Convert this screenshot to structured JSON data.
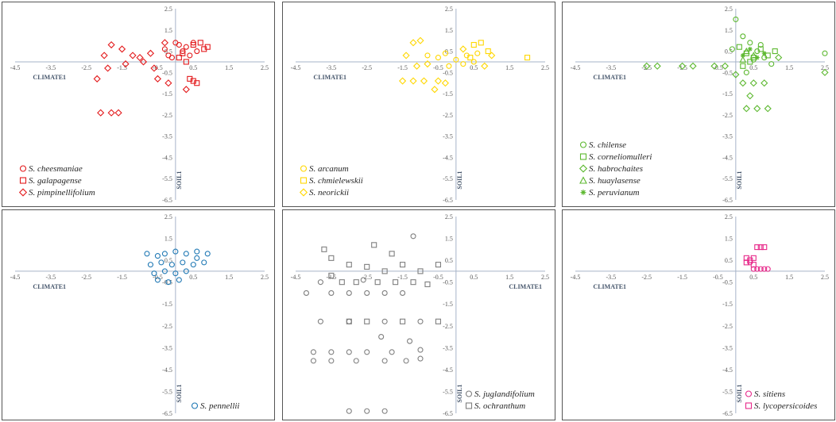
{
  "chart_data": [
    {
      "id": "p1",
      "type": "scatter",
      "xlabel": "CLIMATE1",
      "ylabel": "SOIL1",
      "xlim": [
        -4.5,
        2.5
      ],
      "ylim": [
        -6.5,
        2.5
      ],
      "xticks": [
        -4.5,
        -3.5,
        -2.5,
        -1.5,
        -0.5,
        0.5,
        1.5,
        2.5
      ],
      "yticks": [
        2.5,
        1.5,
        0.5,
        -0.5,
        -1.5,
        -2.5,
        -3.5,
        -4.5,
        -5.5,
        -6.5
      ],
      "xlabel_pos": "left",
      "legend_position": "bottom-left",
      "series": [
        {
          "name": "S. cheesmaniae",
          "marker": "circle",
          "color": "#e31a1c",
          "points": [
            [
              0.1,
              0.8
            ],
            [
              0.3,
              0.7
            ],
            [
              0.5,
              0.9
            ],
            [
              0.2,
              0.5
            ],
            [
              -0.3,
              0.6
            ],
            [
              0.4,
              0.3
            ],
            [
              -0.1,
              0.2
            ],
            [
              0.6,
              0.5
            ],
            [
              0.0,
              0.9
            ],
            [
              -0.2,
              0.3
            ]
          ]
        },
        {
          "name": "S. galapagense",
          "marker": "square",
          "color": "#e31a1c",
          "points": [
            [
              0.2,
              0.4
            ],
            [
              0.5,
              0.8
            ],
            [
              0.7,
              0.9
            ],
            [
              0.3,
              0.0
            ],
            [
              0.4,
              -0.8
            ],
            [
              0.6,
              -1.0
            ],
            [
              0.8,
              0.6
            ],
            [
              0.1,
              0.2
            ],
            [
              0.9,
              0.7
            ],
            [
              0.5,
              -0.9
            ]
          ]
        },
        {
          "name": "S. pimpinellifolium",
          "marker": "diamond",
          "color": "#e31a1c",
          "points": [
            [
              -1.8,
              0.8
            ],
            [
              -2.0,
              0.3
            ],
            [
              -2.2,
              -0.8
            ],
            [
              -1.5,
              0.6
            ],
            [
              -1.2,
              0.3
            ],
            [
              -0.9,
              0.0
            ],
            [
              -0.6,
              -0.3
            ],
            [
              -0.5,
              -0.8
            ],
            [
              -1.0,
              0.2
            ],
            [
              -1.4,
              -0.1
            ],
            [
              -2.1,
              -2.4
            ],
            [
              -1.8,
              -2.4
            ],
            [
              -1.6,
              -2.4
            ],
            [
              -0.2,
              -1.0
            ],
            [
              0.3,
              -1.3
            ],
            [
              -0.3,
              0.9
            ],
            [
              -0.7,
              0.4
            ],
            [
              -1.9,
              -0.3
            ]
          ]
        }
      ]
    },
    {
      "id": "p2",
      "type": "scatter",
      "xlabel": "CLIMATE1",
      "ylabel": "SOIL1",
      "xlim": [
        -4.5,
        2.5
      ],
      "ylim": [
        -6.5,
        2.5
      ],
      "xticks": [
        -4.5,
        -3.5,
        -2.5,
        -1.5,
        -0.5,
        0.5,
        1.5,
        2.5
      ],
      "yticks": [
        2.5,
        1.5,
        0.5,
        -0.5,
        -1.5,
        -2.5,
        -3.5,
        -4.5,
        -5.5,
        -6.5
      ],
      "xlabel_pos": "left",
      "legend_position": "bottom-left",
      "series": [
        {
          "name": "S. arcanum",
          "marker": "circle",
          "color": "#ffd700",
          "points": [
            [
              -0.5,
              0.2
            ],
            [
              -0.3,
              0.4
            ],
            [
              0.0,
              0.1
            ],
            [
              0.3,
              0.3
            ],
            [
              0.5,
              0.0
            ],
            [
              -0.8,
              0.3
            ],
            [
              0.2,
              -0.1
            ],
            [
              0.6,
              0.4
            ],
            [
              -0.2,
              -0.2
            ]
          ]
        },
        {
          "name": "S. chmielewskii",
          "marker": "square",
          "color": "#ffd700",
          "points": [
            [
              2.0,
              0.2
            ],
            [
              0.5,
              0.8
            ],
            [
              0.7,
              0.9
            ],
            [
              0.9,
              0.5
            ],
            [
              0.4,
              0.2
            ]
          ]
        },
        {
          "name": "S. neorickii",
          "marker": "diamond",
          "color": "#ffd700",
          "points": [
            [
              -1.2,
              0.9
            ],
            [
              -1.0,
              1.0
            ],
            [
              -1.4,
              0.3
            ],
            [
              -1.5,
              -0.9
            ],
            [
              -1.2,
              -0.9
            ],
            [
              -0.9,
              -0.9
            ],
            [
              -0.5,
              -0.9
            ],
            [
              -0.6,
              -1.3
            ],
            [
              -0.3,
              -1.0
            ],
            [
              -0.8,
              -0.1
            ],
            [
              -1.1,
              -0.2
            ],
            [
              0.2,
              0.6
            ],
            [
              1.0,
              0.3
            ],
            [
              0.8,
              -0.2
            ]
          ]
        }
      ]
    },
    {
      "id": "p3",
      "type": "scatter",
      "xlabel": "CLIMATE1",
      "ylabel": "SOIL1",
      "xlim": [
        -4.5,
        2.5
      ],
      "ylim": [
        -6.5,
        2.5
      ],
      "xticks": [
        -4.5,
        -3.5,
        -2.5,
        -1.5,
        -0.5,
        0.5,
        1.5,
        2.5
      ],
      "yticks": [
        2.5,
        1.5,
        0.5,
        -0.5,
        -1.5,
        -2.5,
        -3.5,
        -4.5,
        -5.5,
        -6.5
      ],
      "xlabel_pos": "left",
      "legend_position": "bottom-left",
      "series": [
        {
          "name": "S. chilense",
          "marker": "circle",
          "color": "#5cb82f",
          "points": [
            [
              0.0,
              2.0
            ],
            [
              0.2,
              1.2
            ],
            [
              0.4,
              0.9
            ],
            [
              0.6,
              0.5
            ],
            [
              0.8,
              0.2
            ],
            [
              1.0,
              -0.1
            ],
            [
              0.3,
              -0.5
            ],
            [
              0.5,
              0.1
            ],
            [
              2.5,
              0.4
            ],
            [
              0.7,
              0.8
            ],
            [
              -0.1,
              0.6
            ]
          ]
        },
        {
          "name": "S. corneliomulleri",
          "marker": "square",
          "color": "#5cb82f",
          "points": [
            [
              0.1,
              0.7
            ],
            [
              0.3,
              0.4
            ],
            [
              0.5,
              0.2
            ],
            [
              0.7,
              0.6
            ],
            [
              0.9,
              0.3
            ],
            [
              0.2,
              -0.2
            ],
            [
              0.4,
              0.0
            ],
            [
              1.1,
              0.5
            ]
          ]
        },
        {
          "name": "S. habrochaites",
          "marker": "diamond",
          "color": "#5cb82f",
          "points": [
            [
              -2.5,
              -0.2
            ],
            [
              -2.2,
              -0.2
            ],
            [
              -1.5,
              -0.2
            ],
            [
              -1.2,
              -0.2
            ],
            [
              -0.6,
              -0.2
            ],
            [
              -0.3,
              -0.2
            ],
            [
              0.2,
              -1.0
            ],
            [
              0.5,
              -1.0
            ],
            [
              0.8,
              -1.0
            ],
            [
              0.3,
              -2.2
            ],
            [
              0.6,
              -2.2
            ],
            [
              0.9,
              -2.2
            ],
            [
              1.2,
              0.2
            ],
            [
              2.5,
              -0.5
            ],
            [
              0.0,
              -0.6
            ],
            [
              0.4,
              -1.6
            ]
          ]
        },
        {
          "name": "S. huaylasense",
          "marker": "triangle",
          "color": "#5cb82f",
          "points": [
            [
              0.3,
              0.5
            ],
            [
              0.5,
              0.3
            ],
            [
              0.2,
              0.1
            ]
          ]
        },
        {
          "name": "S. peruvianum",
          "marker": "asterisk",
          "color": "#5cb82f",
          "points": [
            [
              0.4,
              0.6
            ],
            [
              0.6,
              0.2
            ],
            [
              0.8,
              0.4
            ],
            [
              0.2,
              0.3
            ]
          ]
        }
      ]
    },
    {
      "id": "p4",
      "type": "scatter",
      "xlabel": "CLIMATE1",
      "ylabel": "SOIL1",
      "xlim": [
        -4.5,
        2.5
      ],
      "ylim": [
        -6.5,
        2.5
      ],
      "xticks": [
        -4.5,
        -3.5,
        -2.5,
        -1.5,
        -0.5,
        0.5,
        1.5,
        2.5
      ],
      "yticks": [
        2.5,
        1.5,
        0.5,
        -0.5,
        -1.5,
        -2.5,
        -3.5,
        -4.5,
        -5.5,
        -6.5
      ],
      "xlabel_pos": "left",
      "legend_position": "bottom-right",
      "series": [
        {
          "name": "S. pennellii",
          "marker": "circle",
          "color": "#1f78b4",
          "points": [
            [
              -0.8,
              0.8
            ],
            [
              -0.5,
              0.7
            ],
            [
              -0.3,
              0.8
            ],
            [
              0.0,
              0.9
            ],
            [
              0.3,
              0.8
            ],
            [
              0.6,
              0.9
            ],
            [
              0.9,
              0.8
            ],
            [
              -0.7,
              0.3
            ],
            [
              -0.4,
              0.4
            ],
            [
              -0.1,
              0.3
            ],
            [
              0.2,
              0.4
            ],
            [
              0.5,
              0.3
            ],
            [
              0.8,
              0.4
            ],
            [
              -0.6,
              -0.1
            ],
            [
              -0.3,
              0.0
            ],
            [
              0.0,
              -0.1
            ],
            [
              0.3,
              0.0
            ],
            [
              -0.5,
              -0.4
            ],
            [
              -0.2,
              -0.5
            ],
            [
              0.1,
              -0.4
            ],
            [
              0.6,
              0.6
            ]
          ]
        }
      ]
    },
    {
      "id": "p5",
      "type": "scatter",
      "xlabel": "CLIMATE1",
      "ylabel": "SOIL1",
      "xlim": [
        -4.5,
        2.5
      ],
      "ylim": [
        -6.5,
        2.5
      ],
      "xticks": [
        -4.5,
        -3.5,
        -2.5,
        -1.5,
        -0.5,
        0.5,
        1.5,
        2.5
      ],
      "yticks": [
        2.5,
        1.5,
        0.5,
        -0.5,
        -1.5,
        -2.5,
        -3.5,
        -4.5,
        -5.5,
        -6.5
      ],
      "xlabel_pos": "right",
      "legend_position": "bottom-right",
      "series": [
        {
          "name": "S. juglandifolium",
          "marker": "circle",
          "color": "#7f7f7f",
          "points": [
            [
              -4.2,
              -1.0
            ],
            [
              -3.8,
              -0.5
            ],
            [
              -3.5,
              -1.0
            ],
            [
              -3.0,
              -1.0
            ],
            [
              -2.5,
              -1.0
            ],
            [
              -2.0,
              -1.0
            ],
            [
              -1.5,
              -1.0
            ],
            [
              -3.8,
              -2.3
            ],
            [
              -3.0,
              -2.3
            ],
            [
              -2.0,
              -2.3
            ],
            [
              -1.0,
              -2.3
            ],
            [
              -4.0,
              -3.7
            ],
            [
              -3.5,
              -3.7
            ],
            [
              -3.0,
              -3.7
            ],
            [
              -2.5,
              -3.7
            ],
            [
              -1.8,
              -3.7
            ],
            [
              -1.0,
              -3.6
            ],
            [
              -4.0,
              -4.1
            ],
            [
              -3.5,
              -4.1
            ],
            [
              -2.8,
              -4.1
            ],
            [
              -2.0,
              -4.1
            ],
            [
              -1.4,
              -4.1
            ],
            [
              -1.0,
              -4.0
            ],
            [
              -3.0,
              -6.4
            ],
            [
              -2.5,
              -6.4
            ],
            [
              -2.0,
              -6.4
            ],
            [
              -1.2,
              1.6
            ],
            [
              -2.6,
              -0.4
            ],
            [
              -1.3,
              -3.2
            ],
            [
              -2.1,
              -3.0
            ]
          ]
        },
        {
          "name": "S. ochranthum",
          "marker": "square",
          "color": "#7f7f7f",
          "points": [
            [
              -3.5,
              0.6
            ],
            [
              -3.0,
              0.3
            ],
            [
              -2.5,
              0.2
            ],
            [
              -2.0,
              0.0
            ],
            [
              -1.5,
              0.3
            ],
            [
              -1.0,
              0.0
            ],
            [
              -0.5,
              0.3
            ],
            [
              -3.2,
              -0.5
            ],
            [
              -2.8,
              -0.5
            ],
            [
              -2.2,
              -0.5
            ],
            [
              -1.7,
              -0.5
            ],
            [
              -1.2,
              -0.5
            ],
            [
              -3.0,
              -2.3
            ],
            [
              -2.5,
              -2.3
            ],
            [
              -1.5,
              -2.3
            ],
            [
              -0.5,
              -2.3
            ],
            [
              -3.5,
              -0.2
            ],
            [
              -1.8,
              0.8
            ],
            [
              -2.3,
              1.2
            ],
            [
              -3.7,
              1.0
            ],
            [
              -0.8,
              -0.6
            ]
          ]
        }
      ]
    },
    {
      "id": "p6",
      "type": "scatter",
      "xlabel": "CLIMATE1",
      "ylabel": "SOIL1",
      "xlim": [
        -4.5,
        2.5
      ],
      "ylim": [
        -6.5,
        2.5
      ],
      "xticks": [
        -4.5,
        -3.5,
        -2.5,
        -1.5,
        -0.5,
        0.5,
        1.5,
        2.5
      ],
      "yticks": [
        2.5,
        1.5,
        0.5,
        -0.5,
        -1.5,
        -2.5,
        -3.5,
        -4.5,
        -5.5,
        -6.5
      ],
      "xlabel_pos": "left",
      "legend_position": "bottom-right",
      "series": [
        {
          "name": "S. sitiens",
          "marker": "circle",
          "color": "#e7298a",
          "points": [
            [
              0.5,
              0.1
            ],
            [
              0.6,
              0.1
            ],
            [
              0.7,
              0.1
            ],
            [
              0.8,
              0.1
            ],
            [
              0.9,
              0.1
            ],
            [
              0.4,
              0.4
            ]
          ]
        },
        {
          "name": "S. lycopersicoides",
          "marker": "square",
          "color": "#e7298a",
          "points": [
            [
              0.6,
              1.1
            ],
            [
              0.7,
              1.1
            ],
            [
              0.8,
              1.1
            ],
            [
              0.3,
              0.6
            ],
            [
              0.4,
              0.5
            ],
            [
              0.5,
              0.6
            ],
            [
              0.3,
              0.4
            ],
            [
              0.5,
              0.3
            ]
          ]
        }
      ]
    }
  ]
}
